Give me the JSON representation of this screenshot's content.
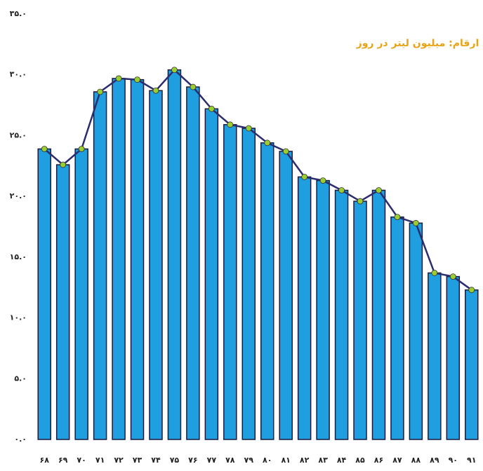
{
  "chart_data": {
    "type": "bar",
    "annotation": "ارقام: میلیون لیتر در روز",
    "categories": [
      "۶۸",
      "۶۹",
      "۷۰",
      "۷۱",
      "۷۲",
      "۷۳",
      "۷۴",
      "۷۵",
      "۷۶",
      "۷۷",
      "۷۸",
      "۷۹",
      "۸۰",
      "۸۱",
      "۸۲",
      "۸۳",
      "۸۴",
      "۸۵",
      "۸۶",
      "۸۷",
      "۸۸",
      "۸۹",
      "۹۰",
      "۹۱"
    ],
    "values": [
      23.9,
      22.6,
      23.9,
      28.6,
      29.7,
      29.6,
      28.7,
      30.4,
      29.0,
      27.2,
      25.9,
      25.6,
      24.4,
      23.7,
      21.6,
      21.3,
      20.5,
      19.6,
      20.5,
      18.3,
      17.8,
      13.7,
      13.4,
      12.3
    ],
    "color": "#1f9fe0",
    "line_overlay": true,
    "line_color": "#2b2d6e",
    "marker_color": "#9acd32",
    "ylim": [
      0,
      35
    ],
    "yticks": [
      {
        "value": 0,
        "label": "۰.۰"
      },
      {
        "value": 5,
        "label": "۵.۰"
      },
      {
        "value": 10,
        "label": "۱۰.۰"
      },
      {
        "value": 15,
        "label": "۱۵.۰"
      },
      {
        "value": 20,
        "label": "۲۰.۰"
      },
      {
        "value": 25,
        "label": "۲۵.۰"
      },
      {
        "value": 30,
        "label": "۳۰.۰"
      },
      {
        "value": 35,
        "label": "۳۵.۰"
      }
    ],
    "grid": false
  }
}
